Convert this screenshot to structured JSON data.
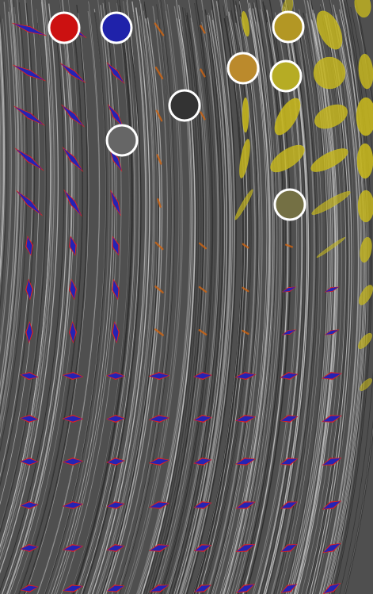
{
  "figure": {
    "background_color": "#4f4f4f",
    "stroke_colors": [
      "#bdbdbd",
      "#2c2c2c",
      "#888888"
    ],
    "glyph_colors": {
      "cross_primary": "#e02020",
      "cross_secondary": "#2424b4",
      "ellipse": "#c4b51e",
      "ellipse_edge": "#dbd11f",
      "orange": "#d06410"
    }
  },
  "swatches": [
    {
      "id": "red",
      "color": "#cc1111"
    },
    {
      "id": "blue",
      "color": "#1f22aa"
    },
    {
      "id": "mustard",
      "color": "#b39724"
    },
    {
      "id": "orange",
      "color": "#bb8a2c"
    },
    {
      "id": "yellow",
      "color": "#b6ac24"
    },
    {
      "id": "dark-gray",
      "color": "#333333"
    },
    {
      "id": "mid-gray",
      "color": "#666666"
    },
    {
      "id": "olive",
      "color": "#747044"
    }
  ]
}
